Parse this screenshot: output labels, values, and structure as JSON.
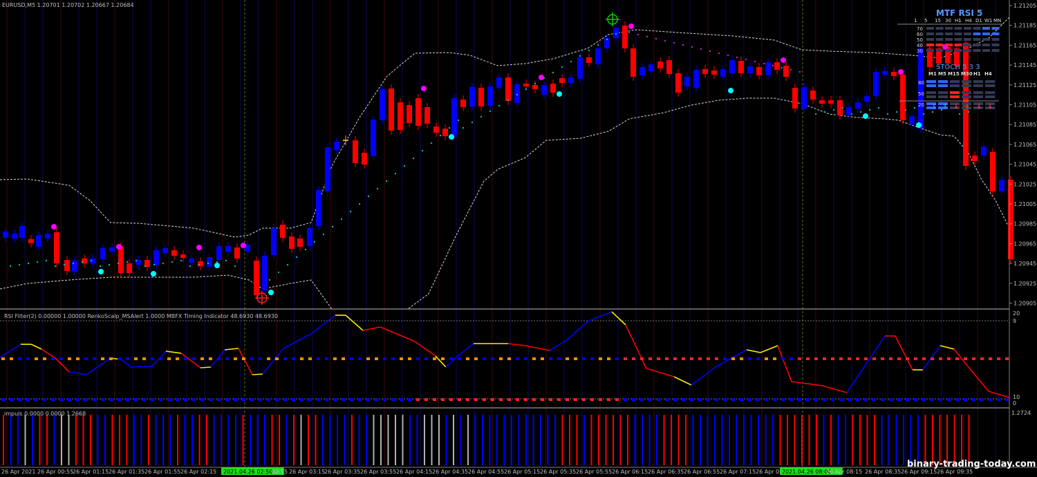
{
  "symbol_header": "EURUSD,M5  1.20701 1.20702 1.20667 1.20684",
  "price_axis": [
    "1.21205",
    "1.21185",
    "1.21165",
    "1.21145",
    "1.21125",
    "1.21105",
    "1.21085",
    "1.21065",
    "1.21045",
    "1.21025",
    "1.21005",
    "1.20985",
    "1.20965",
    "1.20945",
    "1.20925",
    "1.20905"
  ],
  "indicator_header": "RSI Filter(2) 0.00000 1.00000  RenkoScalp_MSAlert 1.0000  MBFX Timing Indicator 48.6930 48.6930",
  "indicator_scale": [
    "20",
    "9",
    "10",
    "0"
  ],
  "impulse_header": "impuls 0.0000 0.0000 1.2668",
  "impulse_scale": "1.2724",
  "time_axis": [
    "26 Apr 2021",
    "26 Apr 00:55",
    "26 Apr 01:15",
    "26 Apr 01:35",
    "26 Apr 01:55",
    "26 Apr 02:15",
    "2021.04.26 02:50",
    "02:55",
    "26 Apr 03:15",
    "26 Apr 03:35",
    "26 Apr 03:55",
    "26 Apr 04:15",
    "26 Apr 04:35",
    "26 Apr 04:55",
    "26 Apr 05:15",
    "26 Apr 05:35",
    "26 Apr 05:55",
    "26 Apr 06:15",
    "26 Apr 06:35",
    "26 Apr 06:55",
    "26 Apr 07:15",
    "26 Apr 07",
    "2021.04.26 08:00",
    "26 Apr 08:15",
    "26 Apr 08:35",
    "26 Apr 09:15",
    "26 Apr 09:35"
  ],
  "mtf_panel": {
    "title": "MTF RSI 5",
    "timeframes": [
      "1",
      "5",
      "15",
      "30",
      "H1",
      "H4",
      "D1",
      "W1",
      "MN"
    ],
    "levels": [
      "70",
      "60",
      "50",
      "40",
      "30"
    ],
    "stoch_title": "STOCH 5 3 3",
    "stoch_timeframes": [
      "M1",
      "M5",
      "M15",
      "M30",
      "H1",
      "H4"
    ],
    "stoch_levels": [
      "80",
      "50",
      "20"
    ]
  },
  "watermark": "binary-trading-today.com",
  "colors": {
    "bull": "#0000ff",
    "bear": "#ff0000",
    "band": "#cccccc",
    "grid": "#262626"
  }
}
